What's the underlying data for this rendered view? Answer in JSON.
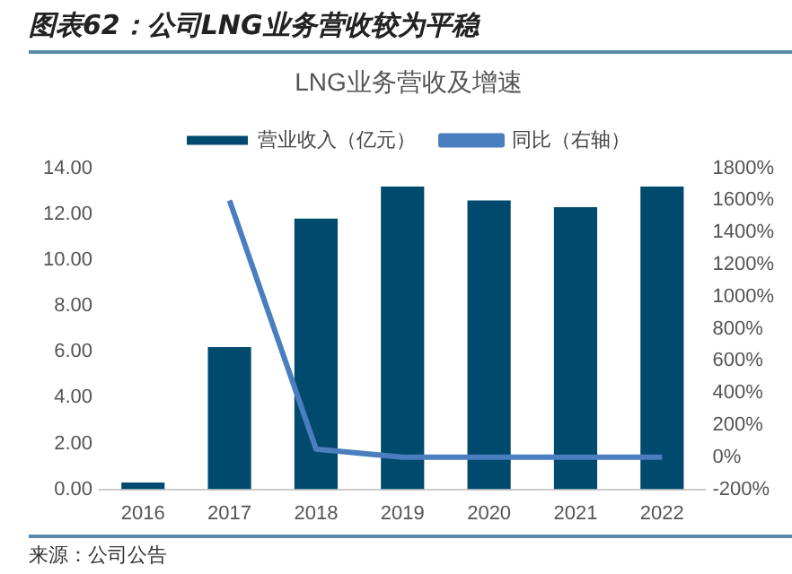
{
  "chart_data": {
    "type": "bar",
    "title": "图表62：公司LNG业务营收较为平稳",
    "subtitle": "LNG业务营收及增速",
    "categories": [
      "2016",
      "2017",
      "2018",
      "2019",
      "2020",
      "2021",
      "2022"
    ],
    "series": [
      {
        "name": "营业收入（亿元）",
        "color": "#004a6e",
        "values": [
          0.3,
          6.2,
          11.8,
          13.2,
          12.6,
          12.3,
          13.2
        ]
      },
      {
        "name": "同比（右轴）",
        "type": "line",
        "axis": "y2",
        "color": "#4a7ebf",
        "values": [
          null,
          1600,
          50,
          0,
          0,
          0,
          0
        ]
      }
    ],
    "ylim": [
      0,
      14
    ],
    "yticks": [
      {
        "value": 0,
        "label": "0.00"
      },
      {
        "value": 2,
        "label": "2.00"
      },
      {
        "value": 4,
        "label": "4.00"
      },
      {
        "value": 6,
        "label": "6.00"
      },
      {
        "value": 8,
        "label": "8.00"
      },
      {
        "value": 10,
        "label": "10.00"
      },
      {
        "value": 12,
        "label": "12.00"
      },
      {
        "value": 14,
        "label": "14.00"
      }
    ],
    "y2lim": [
      -200,
      1800
    ],
    "y2ticks": [
      {
        "value": -200,
        "label": "-200%"
      },
      {
        "value": 0,
        "label": "0%"
      },
      {
        "value": 200,
        "label": "200%"
      },
      {
        "value": 400,
        "label": "400%"
      },
      {
        "value": 600,
        "label": "600%"
      },
      {
        "value": 800,
        "label": "800%"
      },
      {
        "value": 1000,
        "label": "1000%"
      },
      {
        "value": 1200,
        "label": "1200%"
      },
      {
        "value": 1400,
        "label": "1400%"
      },
      {
        "value": 1600,
        "label": "1600%"
      },
      {
        "value": 1800,
        "label": "1800%"
      }
    ],
    "legend": "top",
    "marker": "none",
    "annotations": [
      "来源：公司公告"
    ]
  }
}
